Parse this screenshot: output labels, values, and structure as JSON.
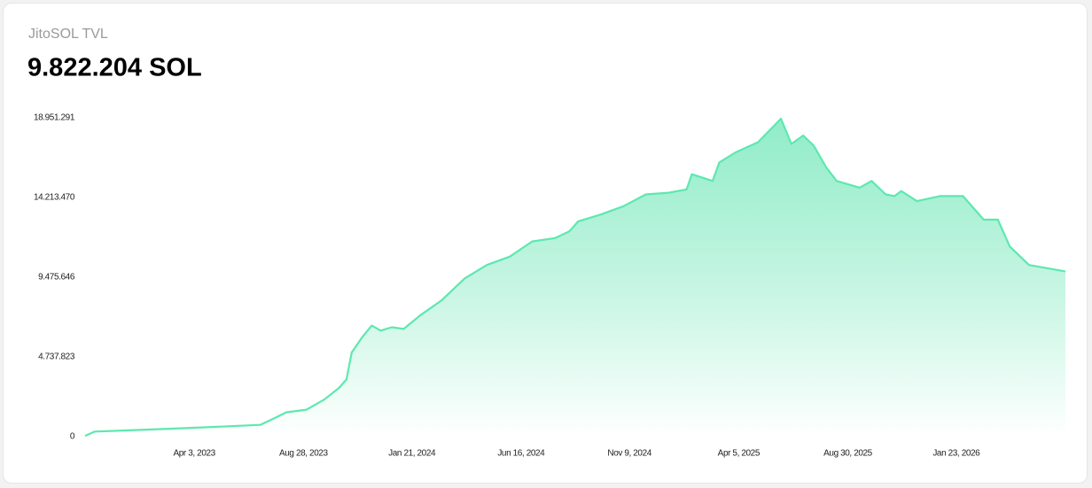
{
  "header": {
    "title": "JitoSOL TVL",
    "value": "9.822.204 SOL"
  },
  "chart_data": {
    "type": "area",
    "x": [
      "2022-11-07",
      "2022-11-20",
      "2023-01-01",
      "2023-03-01",
      "2023-05-01",
      "2023-07-01",
      "2023-07-20",
      "2023-08-05",
      "2023-09-01",
      "2023-09-25",
      "2023-10-15",
      "2023-10-25",
      "2023-11-01",
      "2023-11-15",
      "2023-11-28",
      "2023-12-10",
      "2023-12-25",
      "2024-01-10",
      "2024-02-01",
      "2024-03-01",
      "2024-04-01",
      "2024-05-01",
      "2024-06-01",
      "2024-07-01",
      "2024-08-01",
      "2024-08-20",
      "2024-09-01",
      "2024-10-01",
      "2024-11-01",
      "2024-12-01",
      "2025-01-01",
      "2025-01-25",
      "2025-02-01",
      "2025-03-01",
      "2025-03-10",
      "2025-04-01",
      "2025-05-01",
      "2025-06-01",
      "2025-06-15",
      "2025-07-01",
      "2025-07-15",
      "2025-08-01",
      "2025-08-15",
      "2025-09-15",
      "2025-10-01",
      "2025-10-20",
      "2025-11-01",
      "2025-11-10",
      "2025-12-01",
      "2026-01-01",
      "2026-02-01",
      "2026-03-01",
      "2026-03-20",
      "2026-04-05",
      "2026-05-01",
      "2026-06-19"
    ],
    "values": [
      50000,
      300000,
      370000,
      470000,
      580000,
      700000,
      1100000,
      1450000,
      1600000,
      2200000,
      2900000,
      3400000,
      5000000,
      5900000,
      6600000,
      6300000,
      6500000,
      6400000,
      7200000,
      8100000,
      9400000,
      10200000,
      10700000,
      11600000,
      11800000,
      12200000,
      12800000,
      13200000,
      13700000,
      14400000,
      14500000,
      14700000,
      15600000,
      15200000,
      16300000,
      16900000,
      17500000,
      18900000,
      17400000,
      17900000,
      17300000,
      16000000,
      15200000,
      14800000,
      15200000,
      14400000,
      14300000,
      14600000,
      14000000,
      14300000,
      14300000,
      12900000,
      12900000,
      11300000,
      10200000,
      9822204
    ],
    "color": "#5de8b0",
    "xlim": [
      "2022-11-07",
      "2026-06-19"
    ],
    "xticks": [
      {
        "value": "2023-04-03",
        "label": "Apr 3, 2023"
      },
      {
        "value": "2023-08-28",
        "label": "Aug 28, 2023"
      },
      {
        "value": "2024-01-21",
        "label": "Jan 21, 2024"
      },
      {
        "value": "2024-06-16",
        "label": "Jun 16, 2024"
      },
      {
        "value": "2024-11-09",
        "label": "Nov 9, 2024"
      },
      {
        "value": "2025-04-05",
        "label": "Apr 5, 2025"
      },
      {
        "value": "2025-08-30",
        "label": "Aug 30, 2025"
      },
      {
        "value": "2026-01-23",
        "label": "Jan 23, 2026"
      }
    ],
    "ylim": [
      0,
      18951291
    ],
    "yticks": [
      0,
      {
        "value": 4737823,
        "label": "4.737.823"
      },
      {
        "value": 9475646,
        "label": "9.475.646"
      },
      {
        "value": 14213470,
        "label": "14.213.470"
      },
      {
        "value": 18951291,
        "label": "18.951.291"
      }
    ]
  }
}
